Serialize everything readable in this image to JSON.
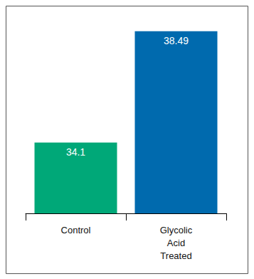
{
  "chart_data": {
    "type": "bar",
    "categories": [
      "Control",
      "Glycolic Acid Treated"
    ],
    "values": [
      34.1,
      38.49
    ],
    "colors": [
      "#00a878",
      "#006aae"
    ],
    "ylim": [
      31.3,
      39.5
    ],
    "data_labels": true,
    "tick_labels": "x",
    "grid": false
  }
}
